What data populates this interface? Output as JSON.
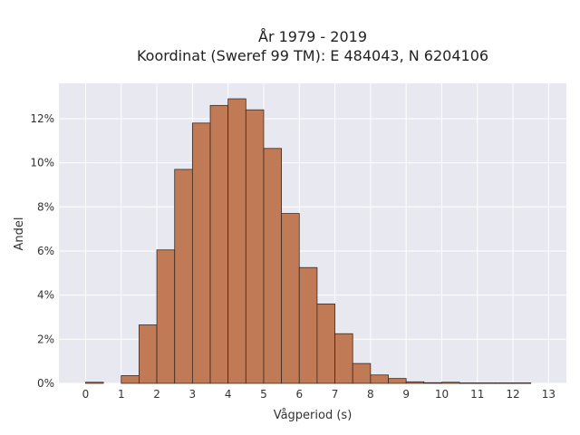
{
  "chart_data": {
    "type": "bar",
    "title_line1": "År 1979 - 2019",
    "title_line2": "Koordinat (Sweref 99 TM): E 484043, N 6204106",
    "xlabel": "Vågperiod (s)",
    "ylabel": "Andel",
    "xlim": [
      -0.75,
      13.5
    ],
    "ylim": [
      0,
      13.6
    ],
    "bin_width": 0.5,
    "x_ticks": [
      0,
      1,
      2,
      3,
      4,
      5,
      6,
      7,
      8,
      9,
      10,
      11,
      12,
      13
    ],
    "x_tick_labels": [
      "0",
      "1",
      "2",
      "3",
      "4",
      "5",
      "6",
      "7",
      "8",
      "9",
      "10",
      "11",
      "12",
      "13"
    ],
    "y_ticks": [
      0,
      2,
      4,
      6,
      8,
      10,
      12
    ],
    "y_tick_labels": [
      "0%",
      "2%",
      "4%",
      "6%",
      "8%",
      "10%",
      "12%"
    ],
    "bins": [
      {
        "start": 0.0,
        "value": 0.05
      },
      {
        "start": 0.5,
        "value": 0.0
      },
      {
        "start": 1.0,
        "value": 0.35
      },
      {
        "start": 1.5,
        "value": 2.65
      },
      {
        "start": 2.0,
        "value": 6.05
      },
      {
        "start": 2.5,
        "value": 9.7
      },
      {
        "start": 3.0,
        "value": 11.8
      },
      {
        "start": 3.5,
        "value": 12.6
      },
      {
        "start": 4.0,
        "value": 12.9
      },
      {
        "start": 4.5,
        "value": 12.4
      },
      {
        "start": 5.0,
        "value": 10.65
      },
      {
        "start": 5.5,
        "value": 7.7
      },
      {
        "start": 6.0,
        "value": 5.25
      },
      {
        "start": 6.5,
        "value": 3.6
      },
      {
        "start": 7.0,
        "value": 2.25
      },
      {
        "start": 7.5,
        "value": 0.9
      },
      {
        "start": 8.0,
        "value": 0.38
      },
      {
        "start": 8.5,
        "value": 0.22
      },
      {
        "start": 9.0,
        "value": 0.07
      },
      {
        "start": 9.5,
        "value": 0.03
      },
      {
        "start": 10.0,
        "value": 0.05
      },
      {
        "start": 10.5,
        "value": 0.02
      },
      {
        "start": 11.0,
        "value": 0.02
      },
      {
        "start": 11.5,
        "value": 0.02
      },
      {
        "start": 12.0,
        "value": 0.02
      }
    ],
    "grid": true,
    "colors": {
      "bar_fill": "#c07a55",
      "bar_stroke": "#3a2a22",
      "plot_bg": "#e8e8f0",
      "grid": "#ffffff"
    }
  }
}
